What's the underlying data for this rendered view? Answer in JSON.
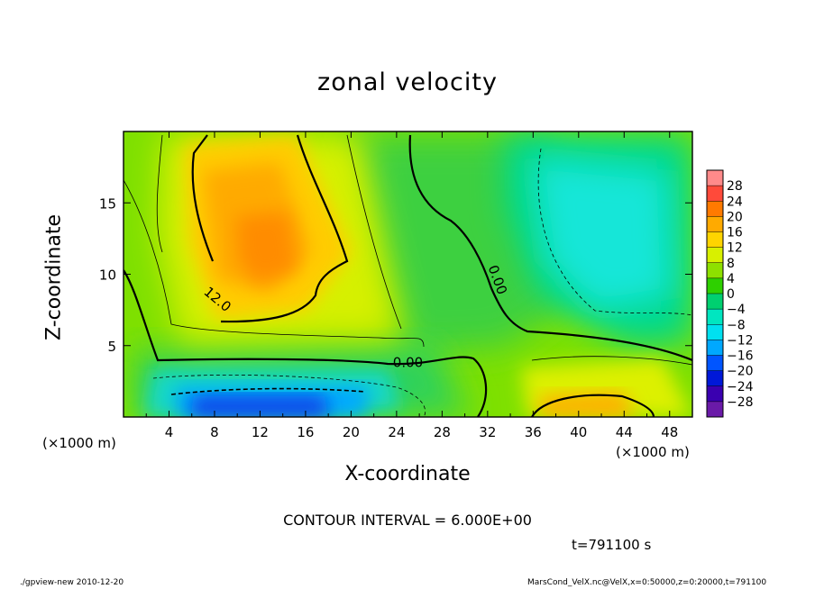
{
  "chart_data": {
    "type": "heatmap",
    "title": "zonal velocity",
    "xlabel": "X-coordinate",
    "ylabel": "Z-coordinate",
    "x_unit_label": "(×1000 m)",
    "xlim": [
      0,
      50
    ],
    "ylim": [
      0,
      20
    ],
    "x_ticks": [
      "4",
      "8",
      "12",
      "16",
      "20",
      "24",
      "28",
      "32",
      "36",
      "40",
      "44",
      "48"
    ],
    "x_tick_values": [
      4,
      8,
      12,
      16,
      20,
      24,
      28,
      32,
      36,
      40,
      44,
      48
    ],
    "y_ticks": [
      "5",
      "10",
      "15"
    ],
    "y_tick_values": [
      5,
      10,
      15
    ],
    "colorbar": {
      "levels": [
        "28",
        "24",
        "20",
        "16",
        "12",
        "8",
        "4",
        "0",
        "−4",
        "−8",
        "−12",
        "−16",
        "−20",
        "−24",
        "−28"
      ],
      "colors": [
        "#ff8a8a",
        "#ff4a3a",
        "#ff7a00",
        "#ffaa00",
        "#ffd400",
        "#d8f000",
        "#8ee000",
        "#2ed000",
        "#00d070",
        "#00e6c0",
        "#00e0f0",
        "#00a8ff",
        "#0055ff",
        "#0018d8",
        "#3a00b0",
        "#6a1aa8"
      ]
    },
    "field_features": [
      {
        "description": "maximum",
        "x": 12,
        "z": 12,
        "value": 18
      },
      {
        "description": "maximum",
        "x": 42,
        "z": 1,
        "value": 13
      },
      {
        "description": "minimum",
        "x": 12,
        "z": 1,
        "value": -22
      },
      {
        "description": "minimum",
        "x": 42,
        "z": 14,
        "value": -10
      }
    ],
    "contour_labels": [
      {
        "text": "12.0",
        "x": 8,
        "z": 8
      },
      {
        "text": "0.00",
        "x": 25,
        "z": 3.5
      },
      {
        "text": "0.00",
        "x": 32.5,
        "z": 9.5
      }
    ],
    "contour_interval_text": "CONTOUR INTERVAL = 6.000E+00",
    "time_text": "t=791100 s"
  },
  "footer": {
    "left": "./gpview-new   2010-12-20",
    "right": "MarsCond_VelX.nc@VelX,x=0:50000,z=0:20000,t=791100"
  }
}
